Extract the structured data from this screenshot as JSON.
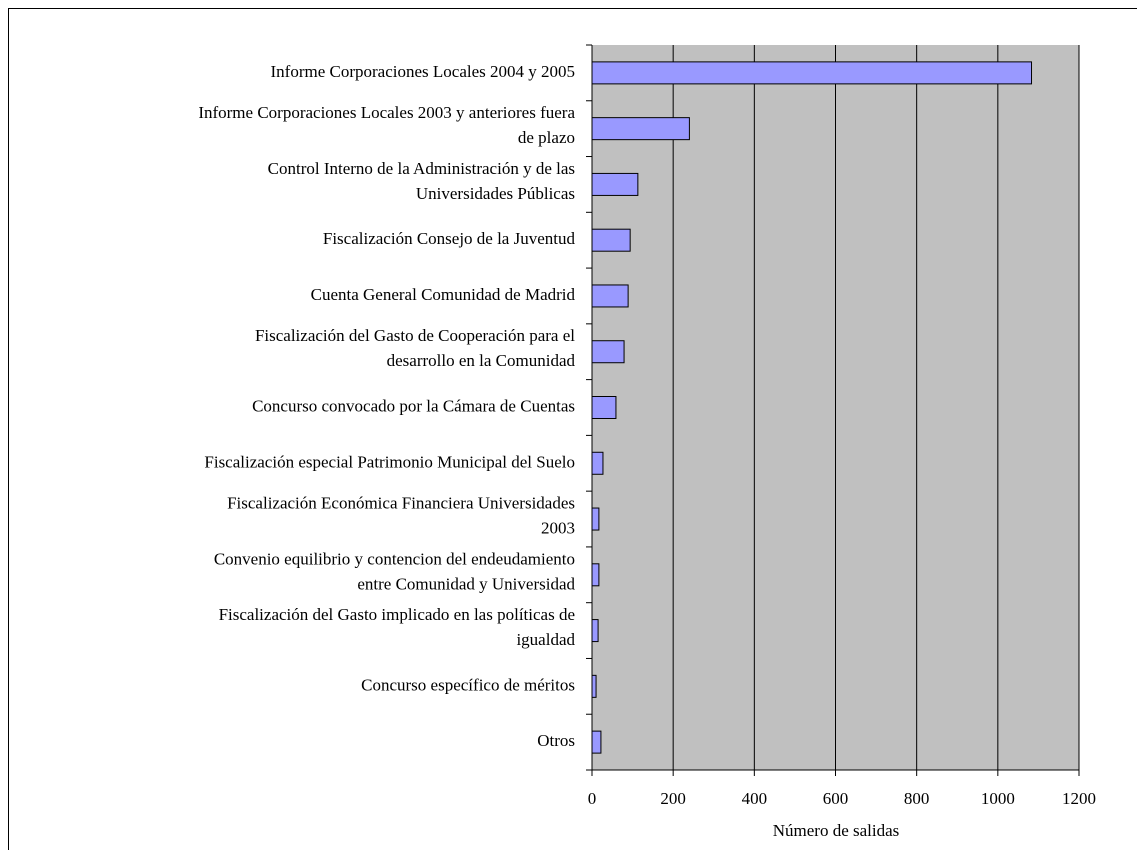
{
  "chart_data": {
    "type": "barh",
    "categories": [
      "Informe Corporaciones Locales 2004 y 2005",
      "Informe Corporaciones Locales 2003 y anteriores fuera\nde plazo",
      "Control Interno de la Administración y de las\nUniversidades Públicas",
      "Fiscalización Consejo de la Juventud",
      "Cuenta General Comunidad de Madrid",
      "Fiscalización del Gasto de Cooperación para el\ndesarrollo en la Comunidad",
      "Concurso convocado por la Cámara de Cuentas",
      "Fiscalización especial Patrimonio Municipal del Suelo",
      "Fiscalización Económica Financiera Universidades\n2003",
      "Convenio equilibrio y contencion del endeudamiento\nentre Comunidad y Universidad",
      "Fiscalización del Gasto implicado en las políticas de\nigualdad",
      "Concurso específico de méritos",
      "Otros"
    ],
    "values": [
      1083,
      240,
      113,
      94,
      89,
      79,
      59,
      27,
      17,
      17,
      15,
      10,
      22
    ],
    "color": "#9999ff",
    "xlabel": "Número de salidas",
    "xlim": [
      0,
      1200
    ],
    "xticks": [
      0,
      200,
      400,
      600,
      800,
      1000,
      1200
    ],
    "grid": true
  }
}
